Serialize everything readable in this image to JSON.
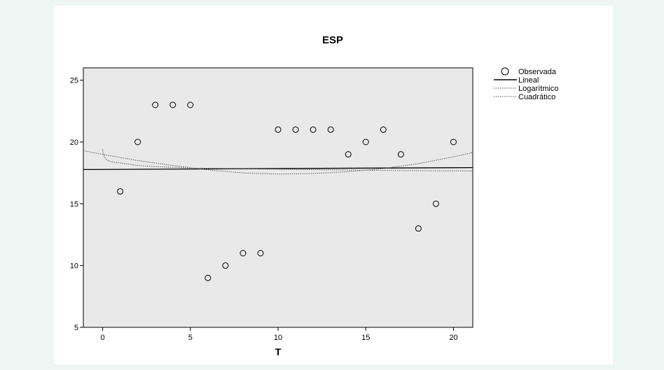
{
  "chart_data": {
    "type": "scatter",
    "title": "ESP",
    "xlabel": "T",
    "ylabel": "",
    "xlim": [
      -1.1,
      21.1
    ],
    "ylim": [
      5,
      26
    ],
    "xticks": [
      0,
      5,
      10,
      15,
      20
    ],
    "yticks": [
      5,
      10,
      15,
      20,
      25
    ],
    "grid": false,
    "legend_position": "right",
    "plot_background": "#e9e9e9",
    "series": [
      {
        "name": "Observada",
        "kind": "points",
        "marker": "open-circle",
        "x": [
          1,
          2,
          3,
          4,
          5,
          6,
          7,
          8,
          9,
          10,
          11,
          12,
          13,
          14,
          15,
          16,
          17,
          18,
          19,
          20
        ],
        "y": [
          16,
          20,
          23,
          23,
          23,
          9,
          10,
          11,
          11,
          21,
          21,
          21,
          21,
          19,
          20,
          21,
          19,
          13,
          15,
          20
        ]
      },
      {
        "name": "Lineal",
        "kind": "line",
        "style": "solid",
        "x": [
          -1.1,
          21.1
        ],
        "y": [
          17.77,
          17.93
        ]
      },
      {
        "name": "Logarítmico",
        "kind": "line",
        "style": "dotted",
        "x": [
          0,
          0.05,
          0.1,
          0.2,
          0.3,
          0.5,
          1,
          2,
          3,
          5,
          7,
          10,
          13,
          16,
          21.1
        ],
        "y": [
          19.4,
          19.0,
          18.8,
          18.6,
          18.5,
          18.4,
          18.3,
          18.1,
          18.0,
          17.9,
          17.85,
          17.8,
          17.75,
          17.7,
          17.65
        ]
      },
      {
        "name": "Cuadrático",
        "kind": "line",
        "style": "dotted",
        "x": [
          -1.1,
          0,
          2,
          4,
          6,
          8,
          10,
          12,
          14,
          16,
          18,
          20,
          21.1
        ],
        "y": [
          19.3,
          19.0,
          18.5,
          18.1,
          17.75,
          17.5,
          17.4,
          17.45,
          17.6,
          17.85,
          18.25,
          18.8,
          19.15
        ]
      }
    ]
  }
}
